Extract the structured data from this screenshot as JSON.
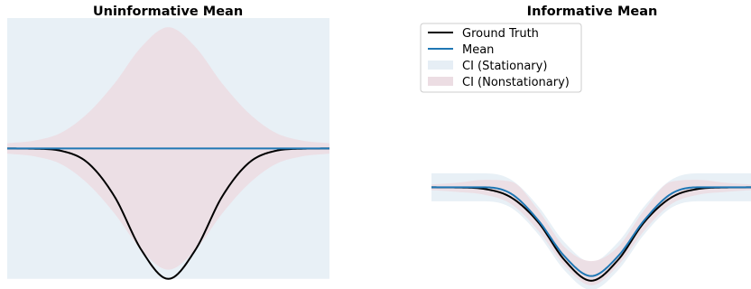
{
  "chart_data": [
    {
      "type": "line",
      "title": "Uninformative Mean",
      "xlabel": "",
      "ylabel": "",
      "axes_visible": false,
      "grid": false,
      "x": [
        -3.0,
        -2.5,
        -2.0,
        -1.5,
        -1.0,
        -0.5,
        0.0,
        0.5,
        1.0,
        1.5,
        2.0,
        2.5,
        3.0
      ],
      "xlim": [
        -3.0,
        3.0
      ],
      "ylim": [
        -1.05,
        1.0
      ],
      "series": [
        {
          "name": "Ground Truth",
          "color": "#000000",
          "values": [
            0.0,
            -0.002,
            -0.018,
            -0.11,
            -0.37,
            -0.78,
            -1.0,
            -0.78,
            -0.37,
            -0.11,
            -0.018,
            -0.002,
            0.0
          ]
        },
        {
          "name": "Mean",
          "color": "#1f77b4",
          "values": [
            0,
            0,
            0,
            0,
            0,
            0,
            0,
            0,
            0,
            0,
            0,
            0,
            0
          ]
        }
      ],
      "bands": [
        {
          "name": "CI (Stationary)",
          "color": "#e6eef5",
          "lower": [
            -1.0,
            -1.0,
            -1.0,
            -1.0,
            -1.0,
            -1.0,
            -1.0,
            -1.0,
            -1.0,
            -1.0,
            -1.0,
            -1.0,
            -1.0
          ],
          "upper": [
            1.0,
            1.0,
            1.0,
            1.0,
            1.0,
            1.0,
            1.0,
            1.0,
            1.0,
            1.0,
            1.0,
            1.0,
            1.0
          ]
        },
        {
          "name": "CI (Nonstationary)",
          "color": "#ecdde3",
          "lower": [
            -0.04,
            -0.06,
            -0.12,
            -0.27,
            -0.5,
            -0.78,
            -0.93,
            -0.78,
            -0.5,
            -0.27,
            -0.12,
            -0.06,
            -0.04
          ],
          "upper": [
            0.04,
            0.06,
            0.12,
            0.27,
            0.5,
            0.78,
            0.93,
            0.78,
            0.5,
            0.27,
            0.12,
            0.06,
            0.04
          ]
        }
      ]
    },
    {
      "type": "line",
      "title": "Informative Mean",
      "xlabel": "",
      "ylabel": "",
      "axes_visible": false,
      "grid": false,
      "x": [
        -3.0,
        -2.5,
        -2.0,
        -1.5,
        -1.0,
        -0.5,
        0.0,
        0.5,
        1.0,
        1.5,
        2.0,
        2.5,
        3.0
      ],
      "xlim": [
        -3.0,
        3.0
      ],
      "ylim": [
        -1.05,
        1.0
      ],
      "legend": {
        "location": "top-left",
        "position": "above plot"
      },
      "series": [
        {
          "name": "Ground Truth",
          "color": "#000000",
          "values": [
            0.0,
            -0.002,
            -0.018,
            -0.11,
            -0.37,
            -0.78,
            -1.0,
            -0.78,
            -0.37,
            -0.11,
            -0.018,
            -0.002,
            0.0
          ]
        },
        {
          "name": "Mean",
          "color": "#1f77b4",
          "values": [
            0.0,
            0.0,
            0.0,
            -0.07,
            -0.35,
            -0.74,
            -0.95,
            -0.74,
            -0.35,
            -0.07,
            0.0,
            0.0,
            0.0
          ]
        }
      ],
      "bands": [
        {
          "name": "CI (Stationary)",
          "color": "#e6eef5",
          "lower": [
            -0.15,
            -0.15,
            -0.15,
            -0.22,
            -0.5,
            -0.89,
            -1.1,
            -0.89,
            -0.5,
            -0.22,
            -0.15,
            -0.15,
            -0.15
          ],
          "upper": [
            0.15,
            0.15,
            0.15,
            0.08,
            -0.2,
            -0.59,
            -0.8,
            -0.59,
            -0.2,
            0.08,
            0.15,
            0.15,
            0.15
          ]
        },
        {
          "name": "CI (Nonstationary)",
          "color": "#ecdde3",
          "lower": [
            -0.03,
            -0.05,
            -0.08,
            -0.18,
            -0.46,
            -0.84,
            -1.05,
            -0.84,
            -0.46,
            -0.18,
            -0.08,
            -0.05,
            -0.03
          ],
          "upper": [
            0.03,
            0.05,
            0.08,
            0.06,
            -0.24,
            -0.64,
            -0.79,
            -0.64,
            -0.24,
            0.06,
            0.08,
            0.05,
            0.03
          ]
        }
      ]
    }
  ]
}
